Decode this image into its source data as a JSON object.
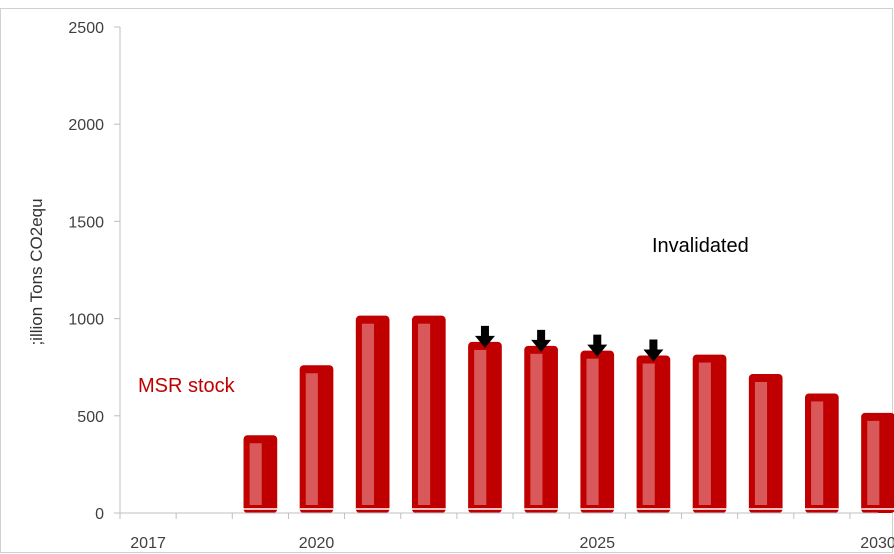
{
  "chart_data": {
    "type": "bar",
    "ylabel": ";illion Tons CO2equ",
    "xlabel": "",
    "ylim": [
      0,
      2500
    ],
    "yticks": [
      0,
      500,
      1000,
      1500,
      2000,
      2500
    ],
    "x_range": [
      2017,
      2030
    ],
    "x_tick_labels": [
      "2017",
      "2020",
      "2025",
      "2030"
    ],
    "x_tick_label_values": [
      2017,
      2020,
      2025,
      2030
    ],
    "grid": false,
    "series": [
      {
        "name": "MSR stock",
        "x": [
          2019,
          2020,
          2021,
          2022,
          2023,
          2024,
          2025,
          2026,
          2027,
          2028,
          2029,
          2030
        ],
        "values": [
          400,
          760,
          1015,
          1015,
          880,
          860,
          835,
          810,
          815,
          715,
          615,
          515
        ]
      }
    ],
    "bar_color": "#c00000",
    "bar_inner_color": "#d9595a",
    "arrow_years": [
      2023,
      2024,
      2025,
      2026
    ],
    "annotations": {
      "series_label": "MSR stock",
      "status_label": "Invalidated"
    }
  }
}
